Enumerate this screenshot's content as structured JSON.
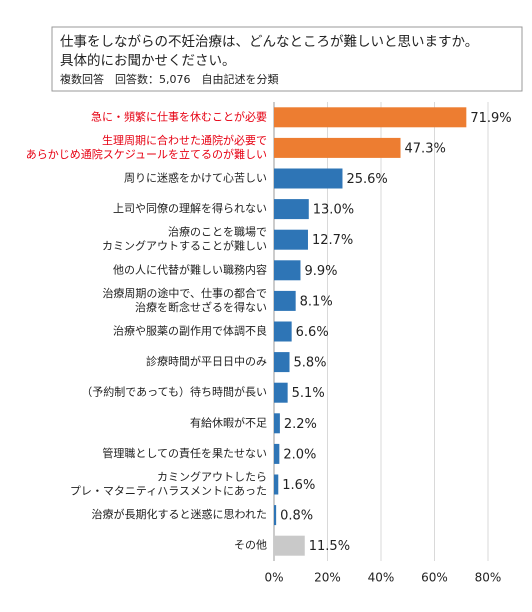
{
  "chart_data": {
    "type": "bar",
    "orientation": "horizontal",
    "title": [
      "仕事をしながらの不妊治療は、どんなところが難しいと思いますか。",
      "具体的にお聞かせください。"
    ],
    "subtitle": "複数回答　回答数：5,076　自由記述を分類",
    "categories": [
      [
        "急に・頻繁に仕事を休むことが必要"
      ],
      [
        "生理周期に合わせた通院が必要で",
        "あらかじめ通院スケジュールを立てるのが難しい"
      ],
      [
        "周りに迷惑をかけて心苦しい"
      ],
      [
        "上司や同僚の理解を得られない"
      ],
      [
        "治療のことを職場で",
        "カミングアウトすることが難しい"
      ],
      [
        "他の人に代替が難しい職務内容"
      ],
      [
        "治療周期の途中で、仕事の都合で",
        "治療を断念せざるを得ない"
      ],
      [
        "治療や服薬の副作用で体調不良"
      ],
      [
        "診療時間が平日日中のみ"
      ],
      [
        "（予約制であっても）待ち時間が長い"
      ],
      [
        "有給休暇が不足"
      ],
      [
        "管理職としての責任を果たせない"
      ],
      [
        "カミングアウトしたら",
        "プレ・マタニティハラスメントにあった"
      ],
      [
        "治療が長期化すると迷惑に思われた"
      ],
      [
        "その他"
      ]
    ],
    "values": [
      71.9,
      47.3,
      25.6,
      13.0,
      12.7,
      9.9,
      8.1,
      6.6,
      5.8,
      5.1,
      2.2,
      2.0,
      1.6,
      0.8,
      11.5
    ],
    "value_labels": [
      "71.9%",
      "47.3%",
      "25.6%",
      "13.0%",
      "12.7%",
      "9.9%",
      "8.1%",
      "6.6%",
      "5.8%",
      "5.1%",
      "2.2%",
      "2.0%",
      "1.6%",
      "0.8%",
      "11.5%"
    ],
    "colors": [
      "#ed7d31",
      "#ed7d31",
      "#2e75b6",
      "#2e75b6",
      "#2e75b6",
      "#2e75b6",
      "#2e75b6",
      "#2e75b6",
      "#2e75b6",
      "#2e75b6",
      "#2e75b6",
      "#2e75b6",
      "#2e75b6",
      "#2e75b6",
      "#c9c9c9"
    ],
    "label_colors": [
      "#e60012",
      "#e60012",
      "#222222",
      "#222222",
      "#222222",
      "#222222",
      "#222222",
      "#222222",
      "#222222",
      "#222222",
      "#222222",
      "#222222",
      "#222222",
      "#222222",
      "#222222"
    ],
    "xlim": [
      0,
      80
    ],
    "xticks": [
      {
        "value": 0,
        "label": "0%"
      },
      {
        "value": 20,
        "label": "20%"
      },
      {
        "value": 40,
        "label": "40%"
      },
      {
        "value": 60,
        "label": "60%"
      },
      {
        "value": 80,
        "label": "80%"
      }
    ],
    "grid": true
  }
}
